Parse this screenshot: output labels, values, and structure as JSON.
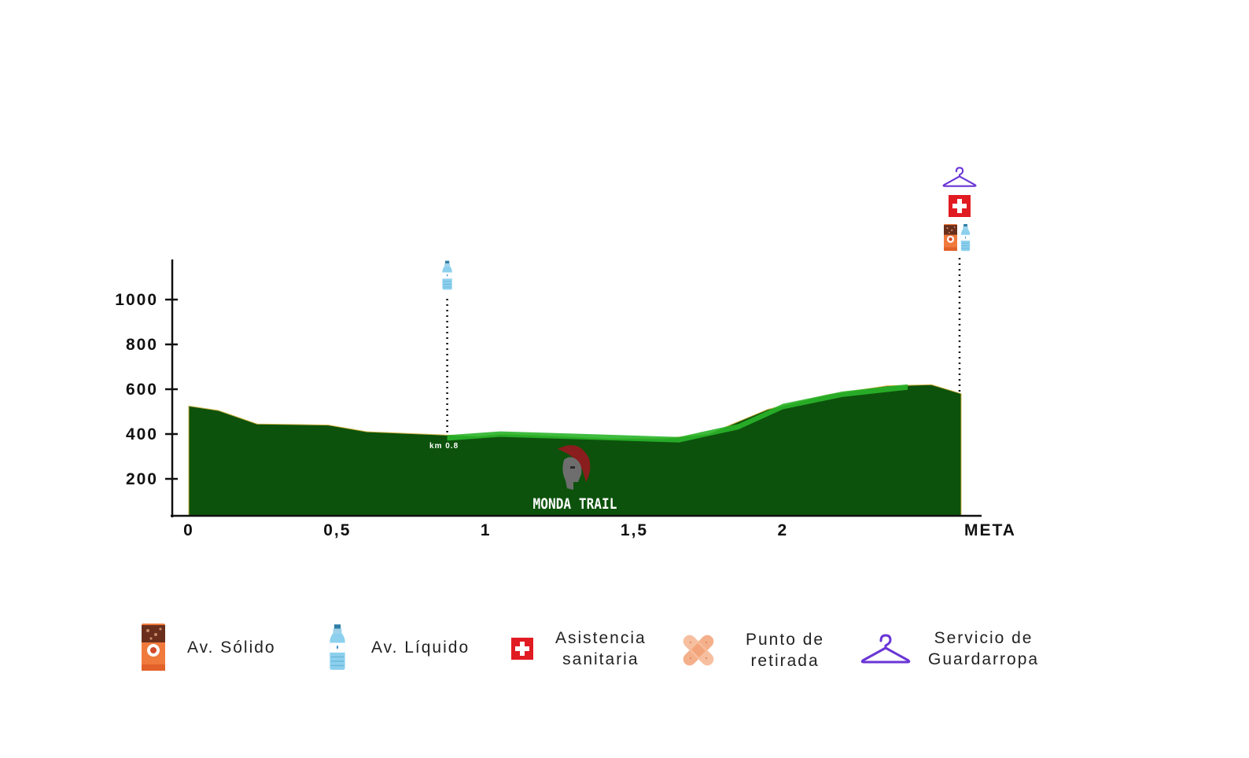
{
  "chart_data": {
    "type": "area",
    "x_tick_labels": [
      "0",
      "0,5",
      "1",
      "1,5",
      "2",
      "META"
    ],
    "x_ticks": [
      0,
      0.5,
      1,
      1.5,
      2,
      2.6
    ],
    "y_ticks": [
      200,
      400,
      600,
      800,
      1000
    ],
    "y_tick_labels": [
      "200",
      "400",
      "600",
      "800",
      "1000"
    ],
    "xlim": [
      0,
      2.6
    ],
    "ylim": [
      30,
      1160
    ],
    "series": [
      {
        "values_x": [
          0,
          0.1,
          0.23,
          0.47,
          0.6,
          0.87,
          0.98,
          1.05,
          1.25,
          1.4,
          1.6,
          1.75,
          1.95,
          2.15,
          2.35,
          2.5,
          2.6
        ],
        "values_y": [
          525,
          505,
          445,
          440,
          410,
          395,
          390,
          400,
          390,
          380,
          380,
          400,
          510,
          575,
          615,
          620,
          580
        ],
        "color": "#0c520c"
      },
      {
        "values_x": [
          0.87,
          1.05,
          1.65,
          1.85,
          2.0,
          2.2,
          2.42
        ],
        "values_y": [
          395,
          412,
          387,
          445,
          535,
          590,
          622
        ],
        "color": "#2ab52a"
      }
    ],
    "annotations": [
      {
        "x": 0.87,
        "label": "km 0.8",
        "icons": [
          "water-bottle"
        ]
      },
      {
        "x": 2.6,
        "label": "",
        "icons": [
          "hanger",
          "medical-cross",
          "energy-bar",
          "water-bottle"
        ]
      }
    ]
  },
  "watermark": {
    "text": "MONDA TRAIL"
  },
  "legend": [
    {
      "icon": "energy-bar-icon",
      "label": "Av. Sólido"
    },
    {
      "icon": "water-bottle-icon",
      "label": "Av. Líquido"
    },
    {
      "icon": "medical-cross-icon",
      "label": "Asistencia\nsanitaria"
    },
    {
      "icon": "bandage-icon",
      "label": "Punto de\nretirada"
    },
    {
      "icon": "hanger-icon",
      "label": "Servicio de\nGuardarropa"
    }
  ],
  "colors": {
    "terrain": "#0c520c",
    "terrain_highlight": "#2ab52a",
    "medical": "#e11b22",
    "hanger": "#6a35d6",
    "bar": "#e8743a"
  }
}
